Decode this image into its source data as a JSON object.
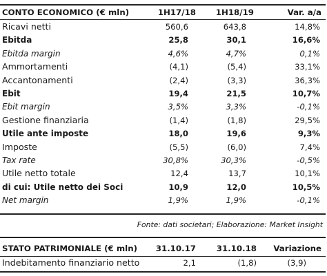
{
  "income": {
    "headers": [
      "CONTO ECONOMICO (€ mln)",
      "1H17/18",
      "1H18/19",
      "Var. a/a"
    ],
    "rows": [
      {
        "label": "Ricavi netti",
        "v1": "560,6",
        "v2": "643,8",
        "v3": "14,8%",
        "style": "plain"
      },
      {
        "label": "Ebitda",
        "v1": "25,8",
        "v2": "30,1",
        "v3": "16,6%",
        "style": "bold"
      },
      {
        "label": "Ebitda margin",
        "v1": "4,6%",
        "v2": "4,7%",
        "v3": "0,1%",
        "style": "italic"
      },
      {
        "label": "Ammortamenti",
        "v1": "(4,1)",
        "v2": "(5,4)",
        "v3": "33,1%",
        "style": "plain"
      },
      {
        "label": "Accantonamenti",
        "v1": "(2,4)",
        "v2": "(3,3)",
        "v3": "36,3%",
        "style": "plain"
      },
      {
        "label": "Ebit",
        "v1": "19,4",
        "v2": "21,5",
        "v3": "10,7%",
        "style": "bold"
      },
      {
        "label": "Ebit margin",
        "v1": "3,5%",
        "v2": "3,3%",
        "v3": "-0,1%",
        "style": "italic"
      },
      {
        "label": "Gestione finanziaria",
        "v1": "(1,4)",
        "v2": "(1,8)",
        "v3": "29,5%",
        "style": "plain"
      },
      {
        "label": "Utile ante imposte",
        "v1": "18,0",
        "v2": "19,6",
        "v3": "9,3%",
        "style": "bold"
      },
      {
        "label": "Imposte",
        "v1": "(5,5)",
        "v2": "(6,0)",
        "v3": "7,4%",
        "style": "plain"
      },
      {
        "label": "Tax rate",
        "v1": "30,8%",
        "v2": "30,3%",
        "v3": "-0,5%",
        "style": "italic"
      },
      {
        "label": "Utile netto totale",
        "v1": "12,4",
        "v2": "13,7",
        "v3": "10,1%",
        "style": "plain"
      },
      {
        "label": "di cui: Utile netto dei Soci",
        "v1": "10,9",
        "v2": "12,0",
        "v3": "10,5%",
        "style": "bold"
      },
      {
        "label": "Net margin",
        "v1": "1,9%",
        "v2": "1,9%",
        "v3": "-0,1%",
        "style": "italic"
      }
    ]
  },
  "source": "Fonte: dati societari; Elaborazione: Market Insight",
  "balance": {
    "headers": [
      "STATO PATRIMONIALE (€ mln)",
      "31.10.17",
      "31.10.18",
      "Variazione"
    ],
    "rows": [
      {
        "label": "Indebitamento finanziario netto",
        "v1": "2,1",
        "v2": "(1,8)",
        "v3": "(3,9)"
      }
    ]
  }
}
